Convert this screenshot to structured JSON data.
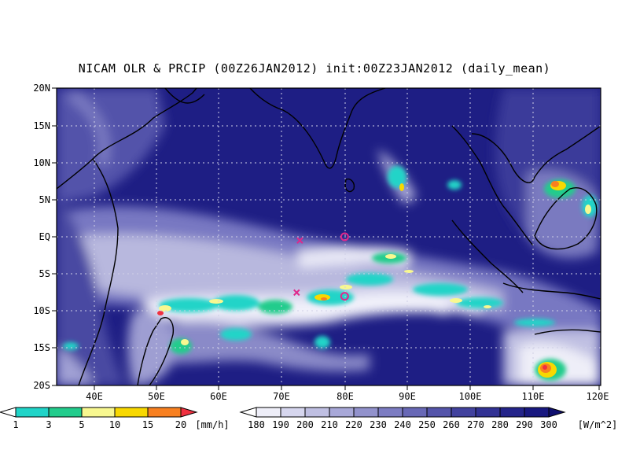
{
  "title": "NICAM OLR & PRCIP (00Z26JAN2012) init:00Z23JAN2012 (daily_mean)",
  "axes": {
    "lat_ticks": [
      "20N",
      "15N",
      "10N",
      "5N",
      "EQ",
      "5S",
      "10S",
      "15S",
      "20S"
    ],
    "lon_ticks": [
      "40E",
      "50E",
      "60E",
      "70E",
      "80E",
      "90E",
      "100E",
      "110E",
      "120E"
    ]
  },
  "colorbars": {
    "precip": {
      "labels": [
        "1",
        "3",
        "5",
        "10",
        "15",
        "20"
      ],
      "unit": "[mm/h]",
      "colors": [
        "#ffffff",
        "#20d4c8",
        "#22cc8c",
        "#f8f890",
        "#f8d800",
        "#f88020",
        "#f03040"
      ]
    },
    "olr": {
      "labels": [
        "180",
        "190",
        "200",
        "210",
        "220",
        "230",
        "240",
        "250",
        "260",
        "270",
        "280",
        "290",
        "300"
      ],
      "unit": "[W/m^2]",
      "colors": [
        "#ffffff",
        "#eeeef8",
        "#d6d6ee",
        "#bfbfe2",
        "#a8a8d8",
        "#9292cc",
        "#7c7cc2",
        "#6868b6",
        "#5454aa",
        "#42429e",
        "#323294",
        "#24248a",
        "#181880",
        "#0e0e6e"
      ]
    }
  },
  "markers": {
    "circles": [
      {
        "lon": 80.0,
        "lat": 0.0
      },
      {
        "lon": 80.0,
        "lat": -8.0
      }
    ],
    "crosses": [
      {
        "lon": 73.0,
        "lat": -0.5
      },
      {
        "lon": 72.5,
        "lat": -7.5
      }
    ],
    "color": "#e0288c"
  }
}
